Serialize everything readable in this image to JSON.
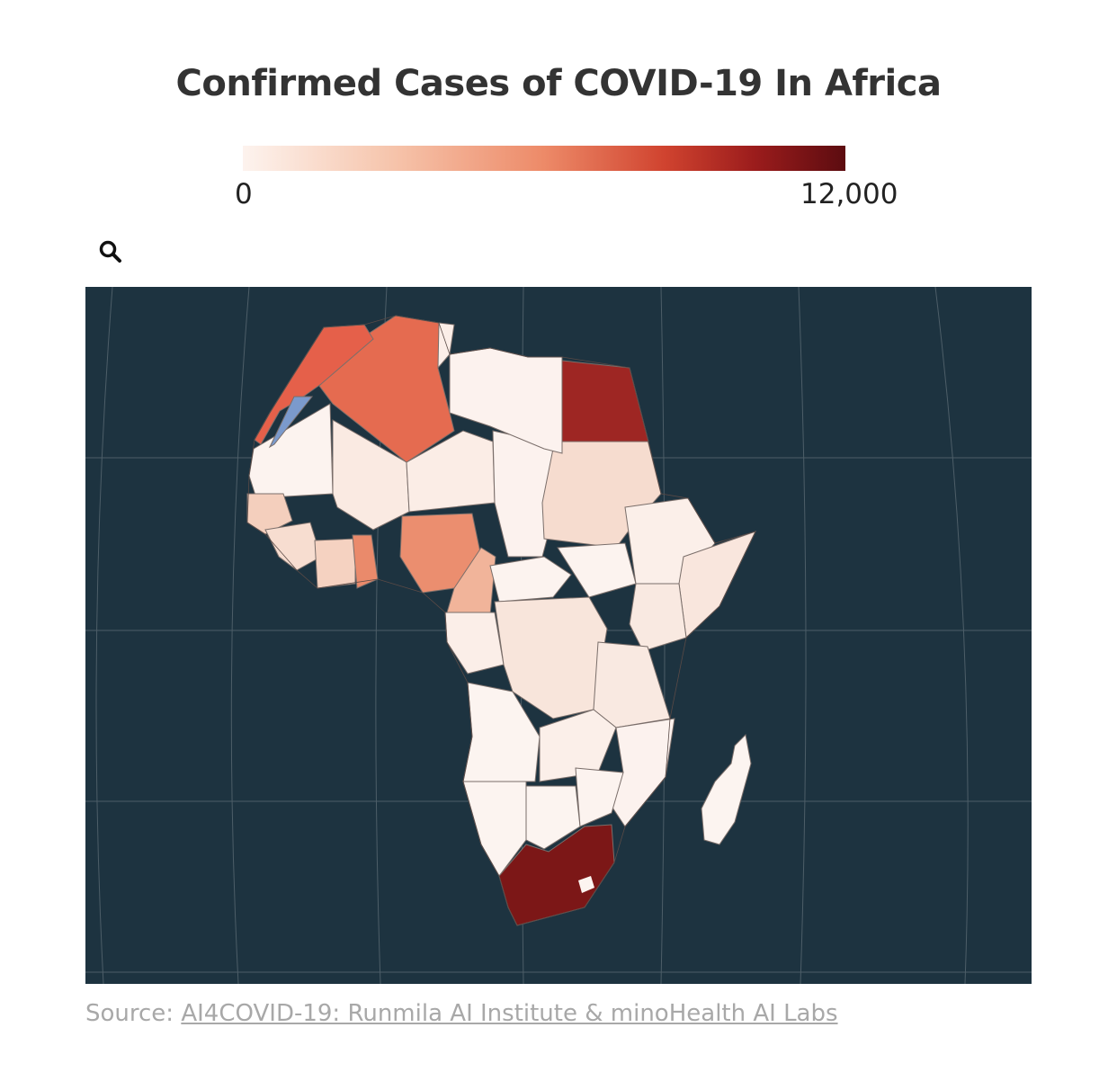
{
  "title": "Confirmed Cases of COVID-19 In Africa",
  "legend": {
    "min_label": "0",
    "max_label": "12,000",
    "colors": [
      "#fdf3ee",
      "#f6c4ab",
      "#ed8a68",
      "#d0432f",
      "#9b1c1c",
      "#5c0c10"
    ]
  },
  "zoom_icon": "search-icon",
  "map": {
    "ocean_color": "#1d3340",
    "graticule_color": "#4d5e68",
    "no_data_color": "#7b9acc",
    "regions": [
      {
        "name": "morocco",
        "color": "#e5604a"
      },
      {
        "name": "western-sahara",
        "color": "#7b9acc"
      },
      {
        "name": "algeria",
        "color": "#e56b50"
      },
      {
        "name": "tunisia",
        "color": "#fbeee8"
      },
      {
        "name": "libya",
        "color": "#fcf2ee"
      },
      {
        "name": "egypt",
        "color": "#9e2623"
      },
      {
        "name": "mauritania",
        "color": "#fcf3ef"
      },
      {
        "name": "mali",
        "color": "#faeae2"
      },
      {
        "name": "niger",
        "color": "#fbede6"
      },
      {
        "name": "chad",
        "color": "#fcf2ee"
      },
      {
        "name": "sudan",
        "color": "#f6dccf"
      },
      {
        "name": "senegal",
        "color": "#f4cfbd"
      },
      {
        "name": "guinea",
        "color": "#f7ddd0"
      },
      {
        "name": "cote-divoire",
        "color": "#f5d2c1"
      },
      {
        "name": "ghana",
        "color": "#ea8a6b"
      },
      {
        "name": "nigeria",
        "color": "#eb8e6f"
      },
      {
        "name": "cameroon",
        "color": "#f1b49a"
      },
      {
        "name": "car",
        "color": "#fcf3ef"
      },
      {
        "name": "south-sudan",
        "color": "#fcf3ef"
      },
      {
        "name": "ethiopia",
        "color": "#fbefe9"
      },
      {
        "name": "somalia",
        "color": "#f9e6dd"
      },
      {
        "name": "drc",
        "color": "#f8e5db"
      },
      {
        "name": "gabon-congo",
        "color": "#fbeee8"
      },
      {
        "name": "kenya",
        "color": "#f9e9e1"
      },
      {
        "name": "tanzania",
        "color": "#f9e9e1"
      },
      {
        "name": "angola",
        "color": "#fcf4f0"
      },
      {
        "name": "zambia",
        "color": "#fbefe9"
      },
      {
        "name": "mozambique",
        "color": "#fcf2ee"
      },
      {
        "name": "namibia",
        "color": "#fcf4f0"
      },
      {
        "name": "botswana",
        "color": "#fcf4f0"
      },
      {
        "name": "zimbabwe",
        "color": "#fcf3ef"
      },
      {
        "name": "south-africa",
        "color": "#7c1717"
      },
      {
        "name": "madagascar",
        "color": "#fcf4f0"
      }
    ]
  },
  "source": {
    "prefix": "Source: ",
    "link_text": "AI4COVID-19: Runmila AI Institute & minoHealth AI Labs"
  }
}
